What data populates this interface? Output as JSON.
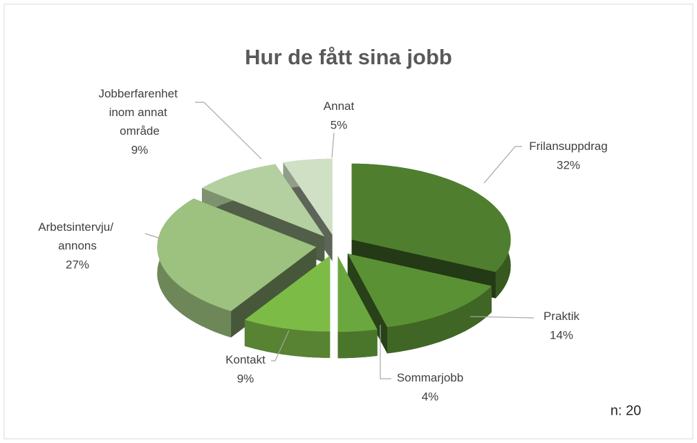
{
  "chart_data": {
    "type": "pie3d",
    "title": "Hur de fått sina jobb",
    "categories": [
      "Frilansuppdrag",
      "Praktik",
      "Sommarjobb",
      "Kontakt",
      "Arbetsintervju/ annons",
      "Jobberfarenhet inom annat område",
      "Annat"
    ],
    "values": [
      32,
      14,
      4,
      9,
      27,
      9,
      5
    ],
    "value_labels": [
      "32%",
      "14%",
      "4%",
      "9%",
      "27%",
      "9%",
      "5%"
    ],
    "colors": [
      "#4f7f2e",
      "#5a9135",
      "#6aa83f",
      "#7dbb47",
      "#9dc17f",
      "#b4d0a0",
      "#cfe0c4"
    ],
    "annotation": "n: 20"
  }
}
